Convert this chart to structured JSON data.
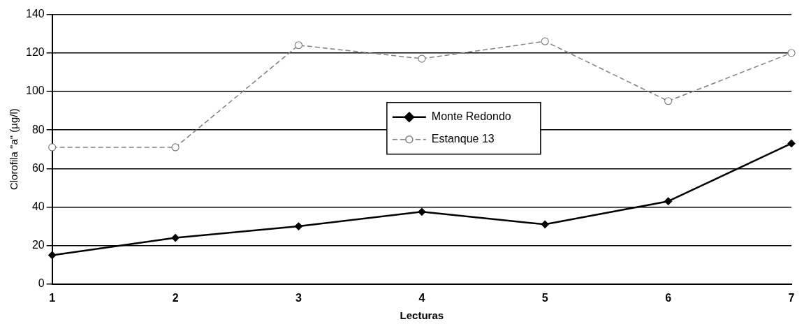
{
  "chart_data": {
    "type": "line",
    "xlabel": "Lecturas",
    "ylabel": "Clorofila \"a\" (µg/l)",
    "categories": [
      "1",
      "2",
      "3",
      "4",
      "5",
      "6",
      "7"
    ],
    "series": [
      {
        "name": "Monte Redondo",
        "color": "#000000",
        "marker": "diamond",
        "line_style": "solid",
        "values": [
          15,
          24,
          30,
          37.5,
          31,
          43,
          73
        ]
      },
      {
        "name": "Estanque 13",
        "color": "#808080",
        "marker": "circle",
        "line_style": "dashed",
        "values": [
          71,
          71,
          124,
          117,
          126,
          95,
          120
        ]
      }
    ],
    "ylim": [
      0,
      140
    ],
    "yticks": [
      0,
      20,
      40,
      60,
      80,
      100,
      120,
      140
    ],
    "grid": "y",
    "legend": "center"
  }
}
